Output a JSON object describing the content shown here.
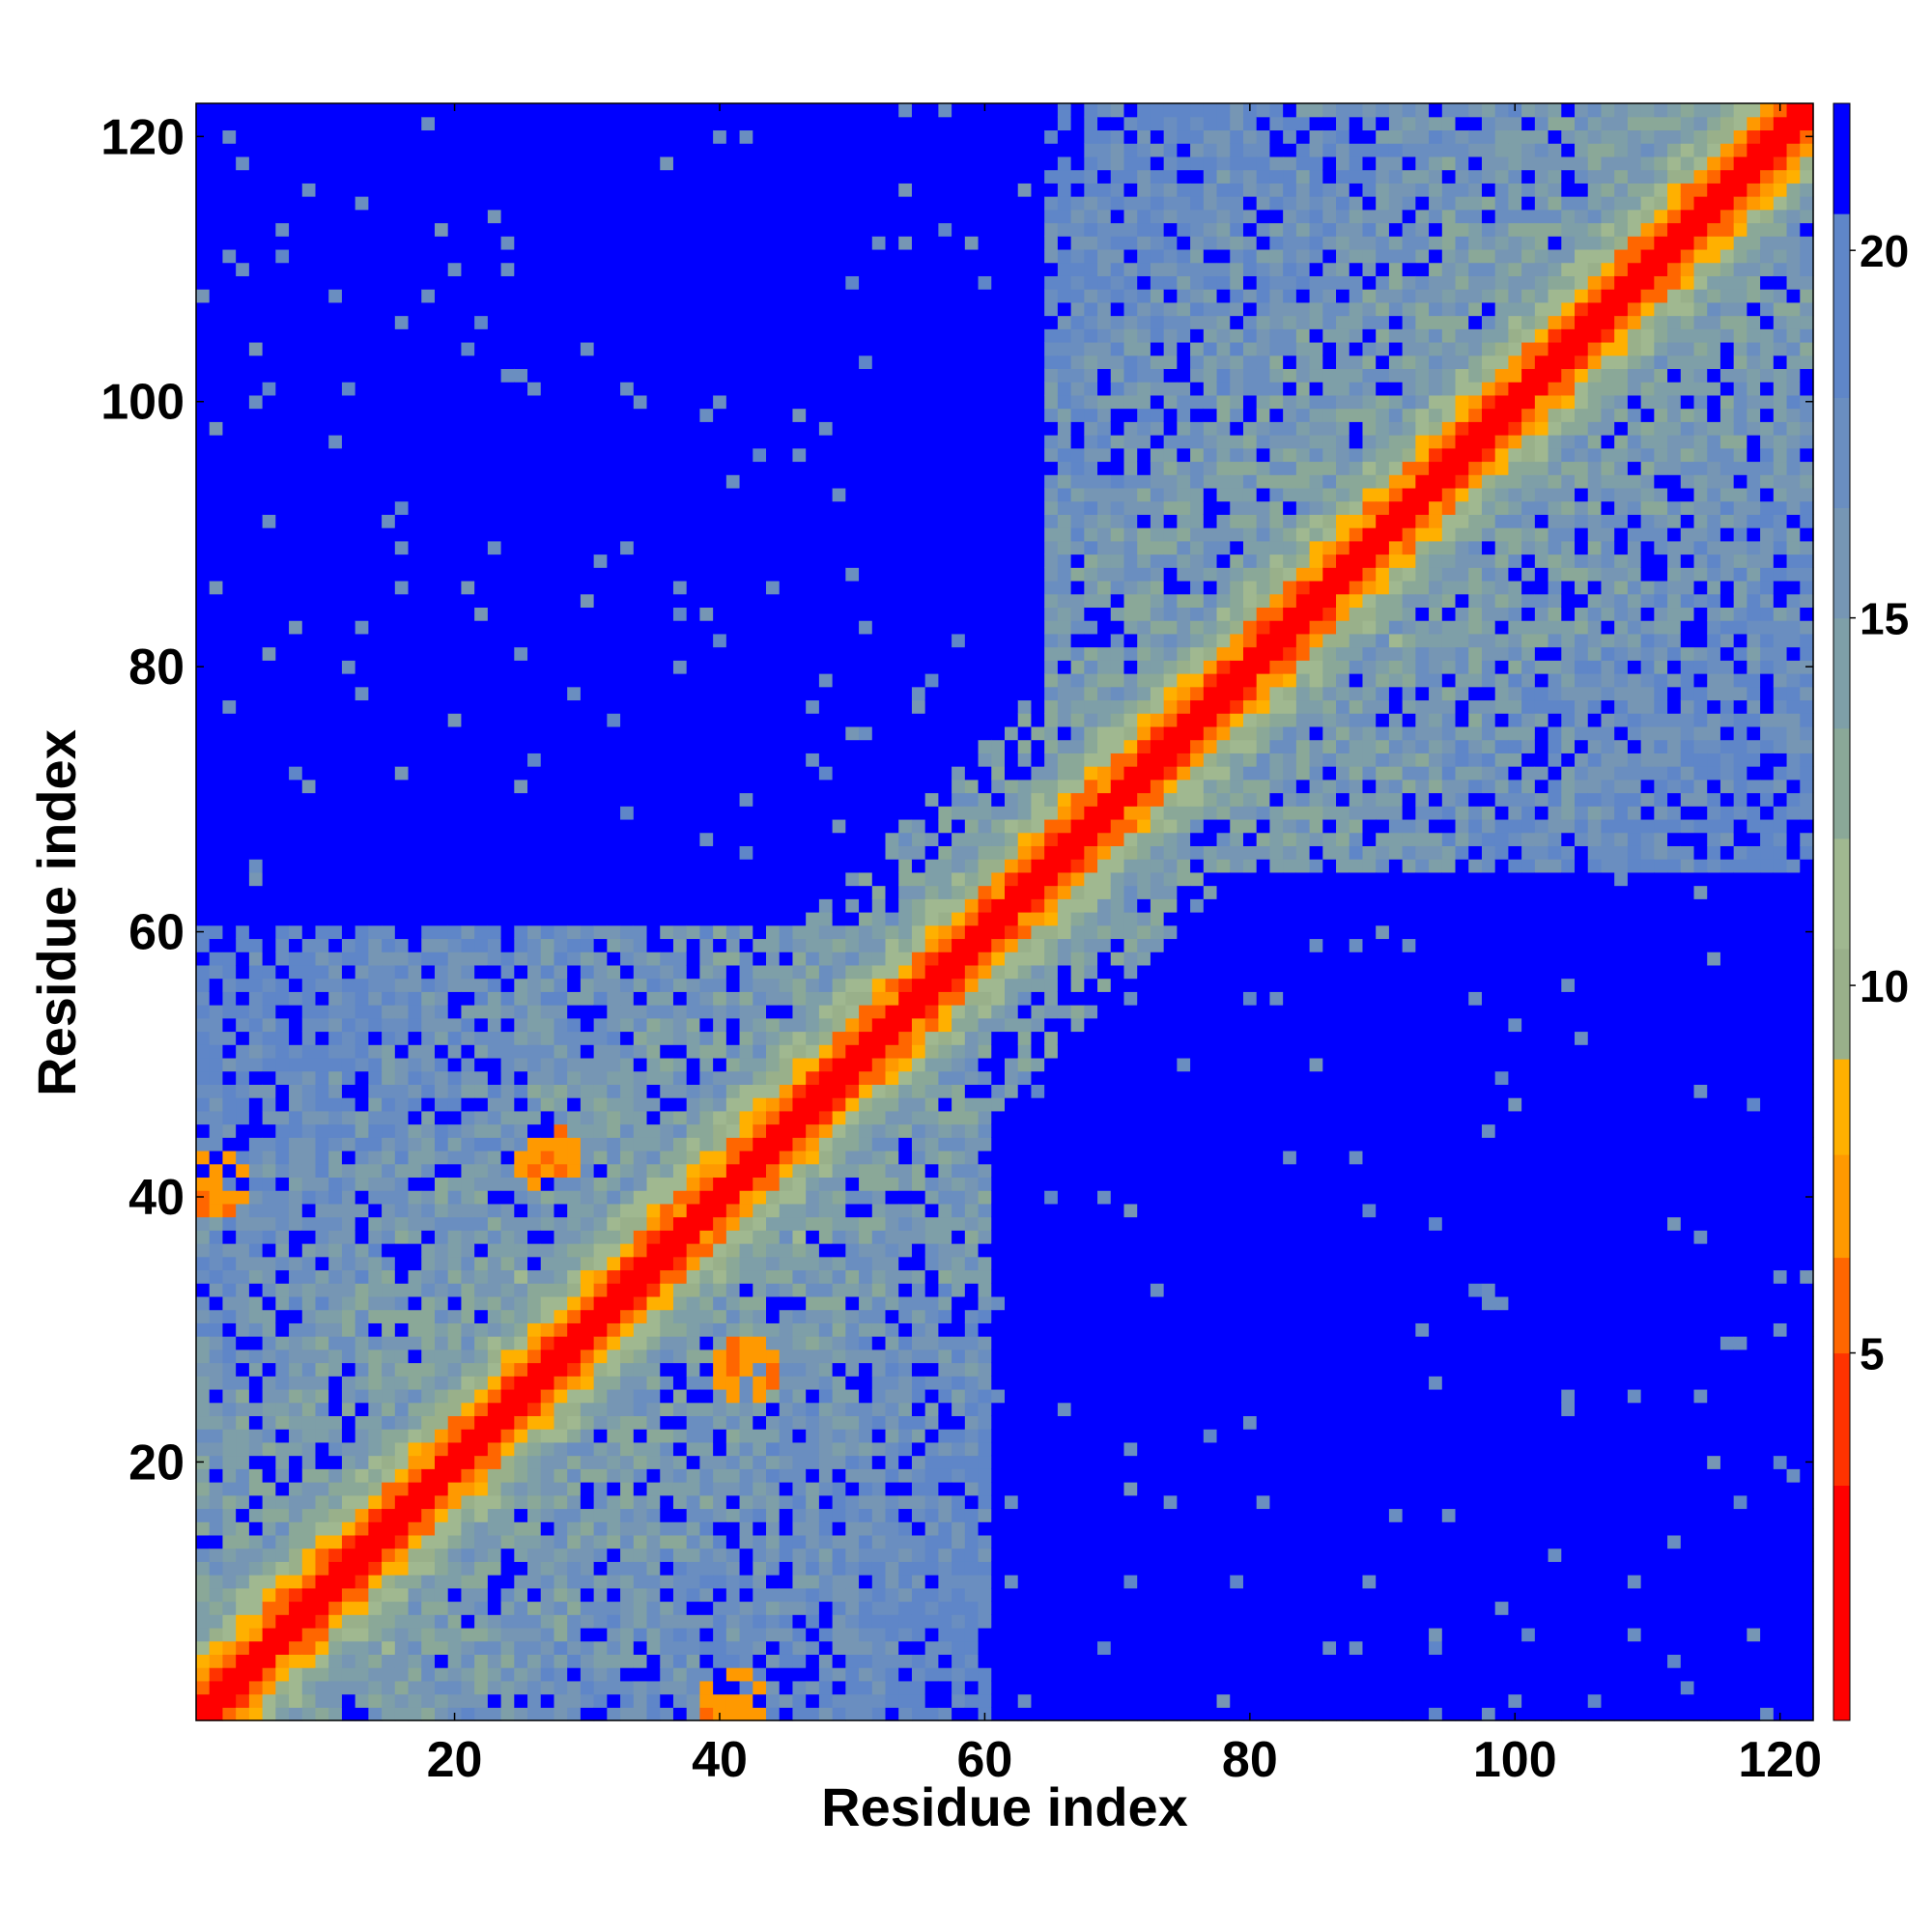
{
  "chart_data": {
    "type": "heatmap",
    "title": "",
    "xlabel": "Residue index",
    "ylabel": "Residue index",
    "n_residues": 122,
    "xlim": [
      0.5,
      122.5
    ],
    "ylim": [
      0.5,
      122.5
    ],
    "x_ticks": [
      20,
      40,
      60,
      80,
      100,
      120
    ],
    "y_ticks": [
      20,
      40,
      60,
      80,
      100,
      120
    ],
    "x_tick_labels": [
      "20",
      "40",
      "60",
      "80",
      "100",
      "120"
    ],
    "y_tick_labels": [
      "20",
      "40",
      "60",
      "80",
      "100",
      "120"
    ],
    "colorbar": {
      "range": [
        0,
        22
      ],
      "ticks": [
        5,
        10,
        15,
        20
      ],
      "tick_labels": [
        "5",
        "10",
        "15",
        "20"
      ],
      "levels": [
        {
          "min": 0,
          "max": 3.2,
          "color": "#ff0000"
        },
        {
          "min": 3.2,
          "max": 5,
          "color": "#ff3300"
        },
        {
          "min": 5,
          "max": 6.3,
          "color": "#ff6600"
        },
        {
          "min": 6.3,
          "max": 7.7,
          "color": "#ff9900"
        },
        {
          "min": 7.7,
          "max": 9,
          "color": "#ffb000"
        },
        {
          "min": 9,
          "max": 10.5,
          "color": "#99b08a"
        },
        {
          "min": 10.5,
          "max": 12,
          "color": "#a0b890"
        },
        {
          "min": 12,
          "max": 13.5,
          "color": "#8aa898"
        },
        {
          "min": 13.5,
          "max": 15,
          "color": "#7e9fa8"
        },
        {
          "min": 15,
          "max": 16.5,
          "color": "#7696b4"
        },
        {
          "min": 16.5,
          "max": 18,
          "color": "#6a8ec0"
        },
        {
          "min": 18,
          "max": 20.5,
          "color": "#5f86c8"
        },
        {
          "min": 20.5,
          "max": 22,
          "color": "#0000ff"
        }
      ]
    },
    "regions": {
      "blocks": [
        {
          "x": [
            1,
            60
          ],
          "y": [
            1,
            60
          ],
          "mean": 15.5
        },
        {
          "x": [
            65,
            122
          ],
          "y": [
            65,
            122
          ],
          "mean": 15.5
        }
      ],
      "hot_spots": [
        {
          "x": 27,
          "y": 43,
          "value": 6
        },
        {
          "x": 42,
          "y": 27,
          "value": 6
        },
        {
          "x": 2,
          "y": 41,
          "value": 6
        },
        {
          "x": 41,
          "y": 2,
          "value": 6
        },
        {
          "x": 96,
          "y": 98,
          "value": 6
        },
        {
          "x": 98,
          "y": 96,
          "value": 6
        }
      ],
      "background_value": 22
    }
  }
}
